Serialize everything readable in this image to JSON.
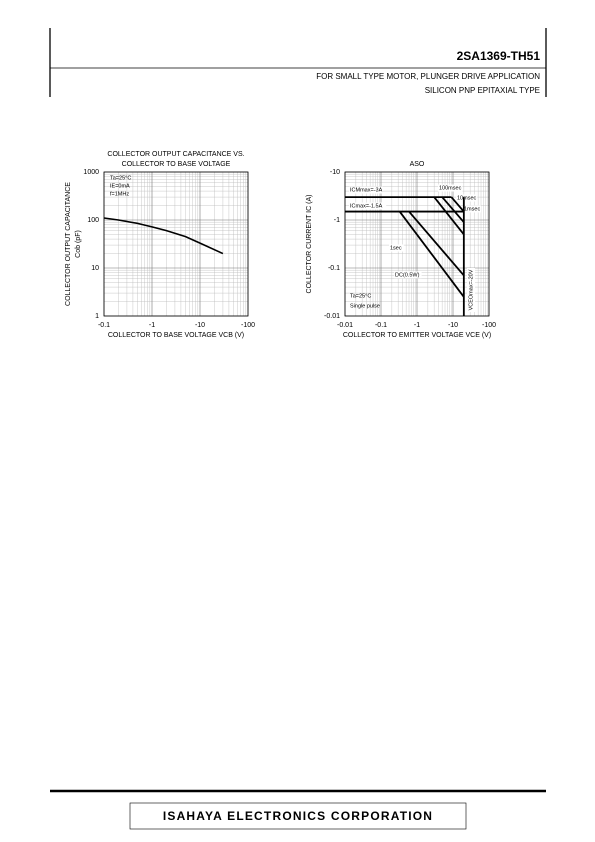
{
  "header": {
    "part": "2SA1369-TH51",
    "application": "FOR SMALL TYPE MOTOR, PLUNGER DRIVE APPLICATION",
    "type": "SILICON PNP EPITAXIAL TYPE"
  },
  "footer": {
    "company": "ISAHAYA ELECTRONICS CORPORATION"
  },
  "chart_data": [
    {
      "type": "line",
      "title": [
        "COLLECTOR OUTPUT CAPACITANCE VS.",
        "COLLECTOR TO BASE VOLTAGE"
      ],
      "xlabel": "COLLECTOR TO BASE VOLTAGE VCB (V)",
      "ylabel": [
        "COLLECTOR OUTPUT CAPACITANCE",
        "Cob (pF)"
      ],
      "annotations": [
        "Ta=25°C",
        "IE=0mA",
        "f=1MHz"
      ],
      "xlog": true,
      "ylog": true,
      "grid": true,
      "xlim": [
        -0.1,
        -100
      ],
      "ylim": [
        1,
        1000
      ],
      "xticks": [
        -0.1,
        -1,
        -10,
        -100
      ],
      "yticks": [
        1,
        10,
        100,
        1000
      ],
      "series": [
        {
          "color": "#000000",
          "x": [
            -0.1,
            -0.2,
            -0.5,
            -1,
            -2,
            -5,
            -10,
            -30
          ],
          "values": [
            110,
            100,
            85,
            72,
            60,
            45,
            33,
            20
          ]
        }
      ]
    },
    {
      "type": "line",
      "title": [
        "ASO"
      ],
      "xlabel": "COLLECTOR TO EMITTER VOLTAGE VCE (V)",
      "ylabel": [
        "COLLECTOR CURRENT IC (A)"
      ],
      "annotations": [
        "Ta=25°C",
        "Single pulse"
      ],
      "xlog": true,
      "ylog": true,
      "grid": true,
      "xlim": [
        -0.01,
        -100
      ],
      "ylim": [
        -0.01,
        -10
      ],
      "xticks": [
        -0.01,
        -0.1,
        -1,
        -10,
        -100
      ],
      "yticks": [
        -0.01,
        -0.1,
        -1,
        -10
      ],
      "series": [
        {
          "name": "ICMmax=-3A",
          "color": "#000000",
          "x": [
            -0.01,
            -9
          ],
          "values": [
            -3,
            -3
          ]
        },
        {
          "name": "ICmax=-1.5A",
          "color": "#000000",
          "x": [
            -0.01,
            -20
          ],
          "values": [
            -1.5,
            -1.5
          ]
        },
        {
          "name": "100msec",
          "color": "#000000",
          "x": [
            -3,
            -20
          ],
          "values": [
            -3,
            -0.5
          ]
        },
        {
          "name": "10msec",
          "color": "#000000",
          "x": [
            -5,
            -20
          ],
          "values": [
            -3,
            -0.9
          ]
        },
        {
          "name": "1msec",
          "color": "#000000",
          "x": [
            -9,
            -20
          ],
          "values": [
            -3,
            -1.5
          ]
        },
        {
          "name": "1sec",
          "color": "#000000",
          "x": [
            -0.6,
            -20
          ],
          "values": [
            -1.5,
            -0.07
          ]
        },
        {
          "name": "DC(0.5W)",
          "color": "#000000",
          "x": [
            -0.33,
            -20
          ],
          "values": [
            -1.5,
            -0.025
          ]
        },
        {
          "name": "VCEOmax=-20V",
          "color": "#000000",
          "x": [
            -20,
            -20
          ],
          "values": [
            -3,
            -0.01
          ]
        }
      ]
    }
  ]
}
